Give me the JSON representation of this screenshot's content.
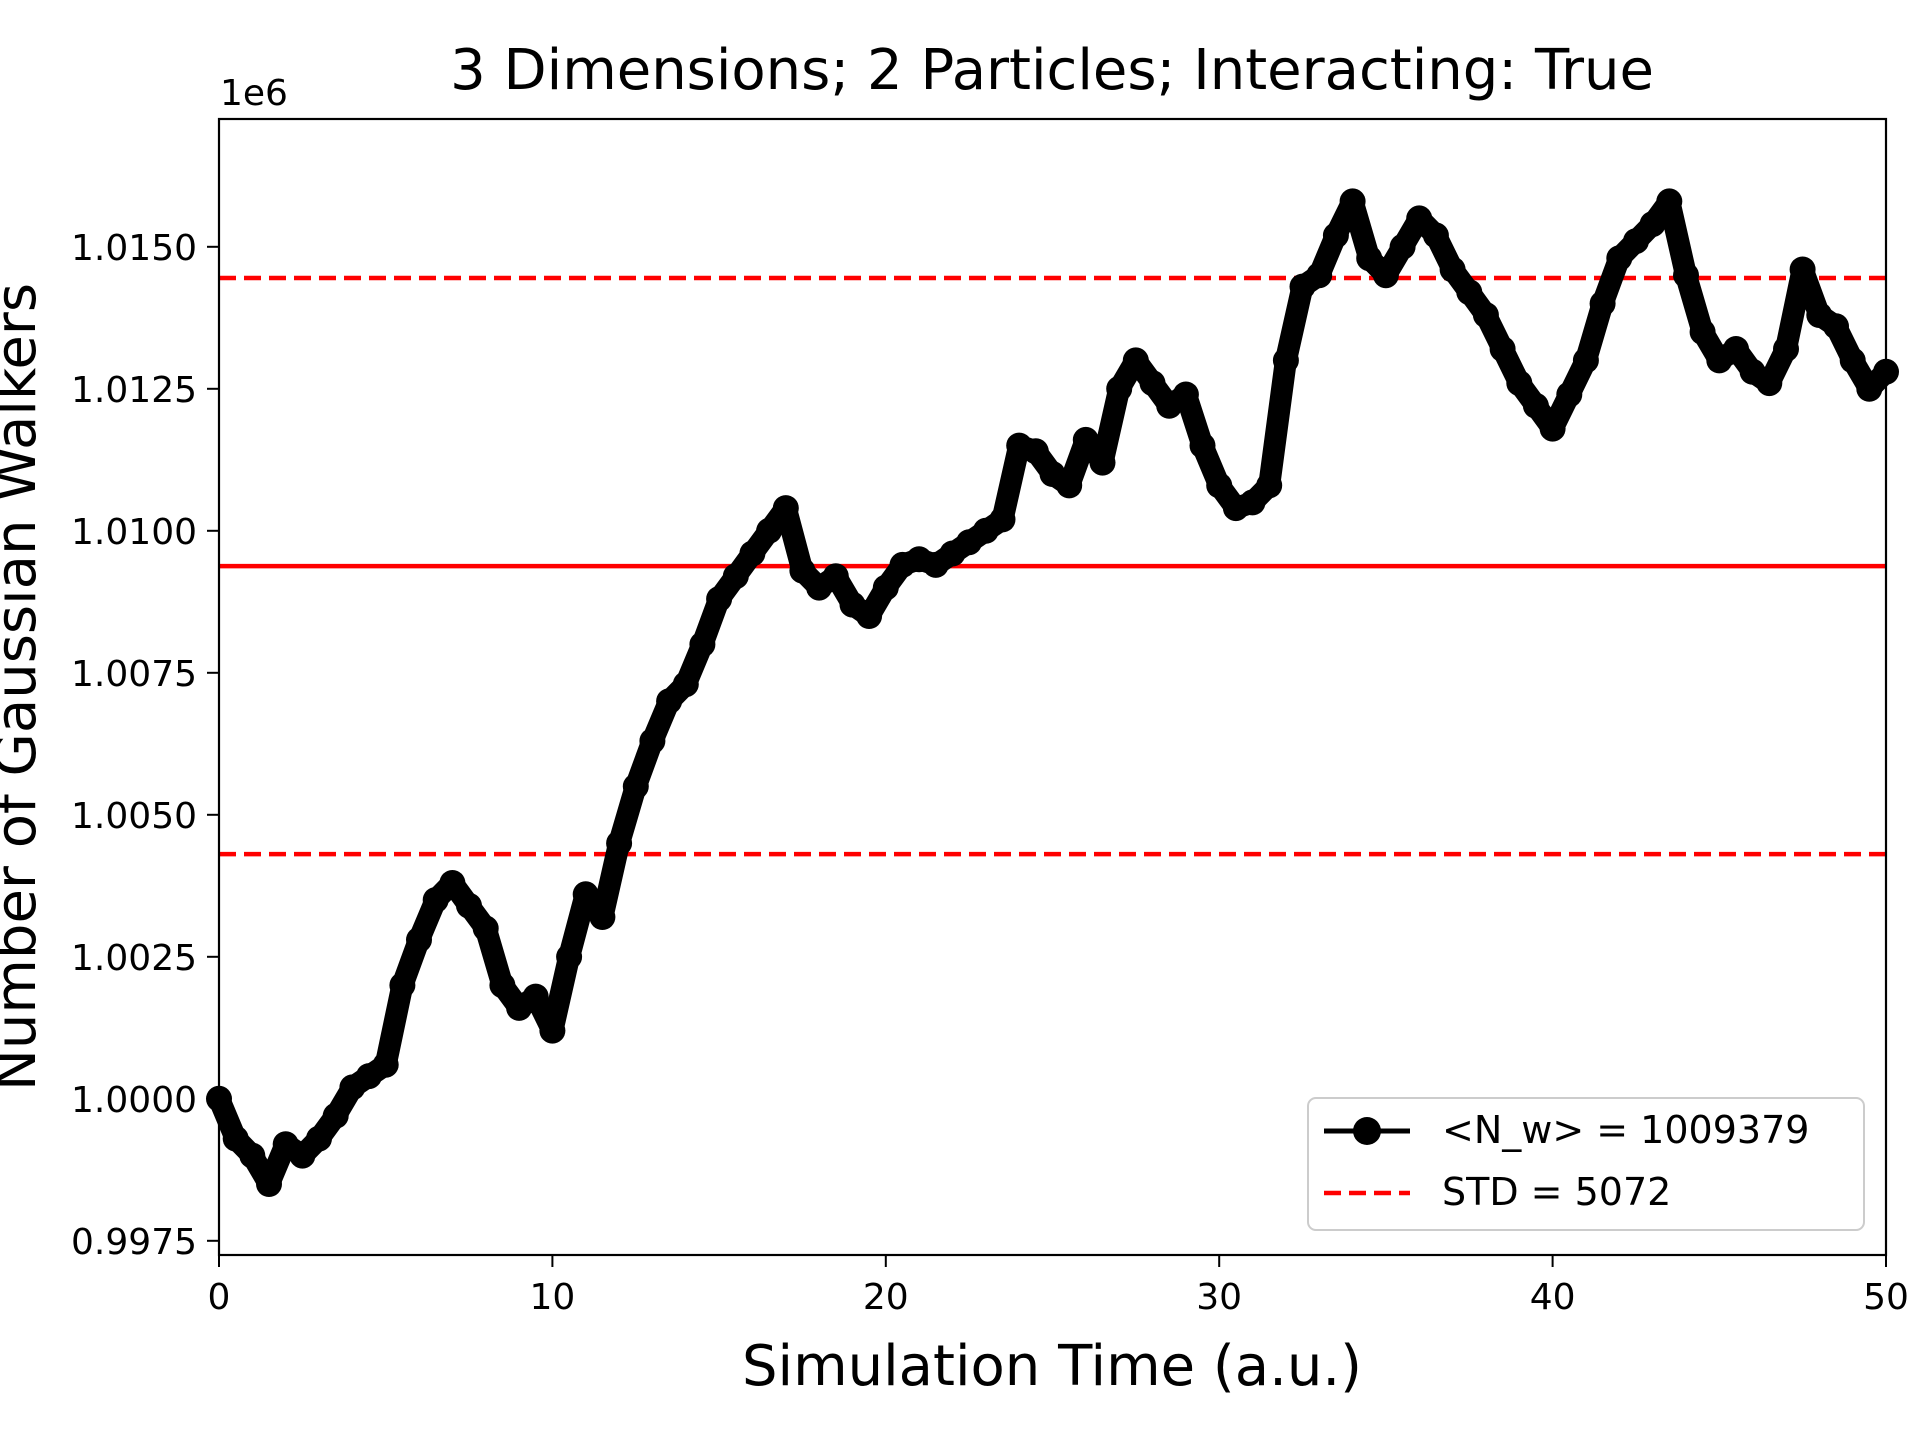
{
  "chart_data": {
    "type": "line",
    "title": "3 Dimensions; 2 Particles; Interacting: True",
    "xlabel": "Simulation Time (a.u.)",
    "ylabel": "Number of Gaussian Walkers",
    "y_offset_label": "1e6",
    "xlim": [
      0,
      50
    ],
    "ylim": [
      0.99725,
      1.01725
    ],
    "x_ticks": [
      0,
      10,
      20,
      30,
      40,
      50
    ],
    "x_tick_labels": [
      "0",
      "10",
      "20",
      "30",
      "40",
      "50"
    ],
    "y_ticks": [
      0.9975,
      1.0,
      1.0025,
      1.005,
      1.0075,
      1.01,
      1.0125,
      1.015
    ],
    "y_tick_labels": [
      "0.9975",
      "1.0000",
      "1.0025",
      "1.0050",
      "1.0075",
      "1.0100",
      "1.0125",
      "1.0150"
    ],
    "grid": false,
    "legend_position": "lower right",
    "series": [
      {
        "name": "<N_w> = 1009379",
        "color": "#000000",
        "style": "line-with-markers",
        "x": [
          0,
          0.5,
          1.0,
          1.5,
          2.0,
          2.5,
          3.0,
          3.5,
          4.0,
          4.5,
          5.0,
          5.5,
          6.0,
          6.5,
          7.0,
          7.5,
          8.0,
          8.5,
          9.0,
          9.5,
          10.0,
          10.5,
          11.0,
          11.5,
          12.0,
          12.5,
          13.0,
          13.5,
          14.0,
          14.5,
          15.0,
          15.5,
          16.0,
          16.5,
          17.0,
          17.5,
          18.0,
          18.5,
          19.0,
          19.5,
          20.0,
          20.5,
          21.0,
          21.5,
          22.0,
          22.5,
          23.0,
          23.5,
          24.0,
          24.5,
          25.0,
          25.5,
          26.0,
          26.5,
          27.0,
          27.5,
          28.0,
          28.5,
          29.0,
          29.5,
          30.0,
          30.5,
          31.0,
          31.5,
          32.0,
          32.5,
          33.0,
          33.5,
          34.0,
          34.5,
          35.0,
          35.5,
          36.0,
          36.5,
          37.0,
          37.5,
          38.0,
          38.5,
          39.0,
          39.5,
          40.0,
          40.5,
          41.0,
          41.5,
          42.0,
          42.5,
          43.0,
          43.5,
          44.0,
          44.5,
          45.0,
          45.5,
          46.0,
          46.5,
          47.0,
          47.5,
          48.0,
          48.5,
          49.0,
          49.5,
          50.0
        ],
        "y": [
          1.0,
          0.9993,
          0.999,
          0.9985,
          0.9992,
          0.999,
          0.9993,
          0.9997,
          1.0002,
          1.0004,
          1.0006,
          1.002,
          1.0028,
          1.0035,
          1.0038,
          1.0034,
          1.003,
          1.002,
          1.0016,
          1.0018,
          1.0012,
          1.0025,
          1.0036,
          1.0032,
          1.0045,
          1.0055,
          1.0063,
          1.007,
          1.0073,
          1.008,
          1.0088,
          1.0092,
          1.0096,
          1.01,
          1.0104,
          1.0093,
          1.009,
          1.0092,
          1.0087,
          1.0085,
          1.009,
          1.0094,
          1.0095,
          1.0094,
          1.0096,
          1.0098,
          1.01,
          1.0102,
          1.0115,
          1.0114,
          1.011,
          1.0108,
          1.0116,
          1.0112,
          1.0125,
          1.013,
          1.0126,
          1.0122,
          1.0124,
          1.0115,
          1.0108,
          1.0104,
          1.0105,
          1.0108,
          1.013,
          1.0143,
          1.0145,
          1.0152,
          1.0158,
          1.0148,
          1.0145,
          1.015,
          1.0155,
          1.0152,
          1.0146,
          1.0142,
          1.0138,
          1.0132,
          1.0126,
          1.0122,
          1.0118,
          1.0124,
          1.013,
          1.014,
          1.0148,
          1.0151,
          1.0154,
          1.0158,
          1.0145,
          1.0135,
          1.013,
          1.0132,
          1.0128,
          1.0126,
          1.0132,
          1.0146,
          1.0138,
          1.0136,
          1.013,
          1.0125,
          1.0128
        ]
      },
      {
        "name": "STD = 5072",
        "color": "#ff0000",
        "style": "dashed",
        "y_values": [
          1.014451,
          1.004307
        ]
      },
      {
        "color": "#ff0000",
        "style": "solid",
        "y_values": [
          1.009379
        ]
      }
    ],
    "mean": 1009379,
    "std": 5072
  }
}
